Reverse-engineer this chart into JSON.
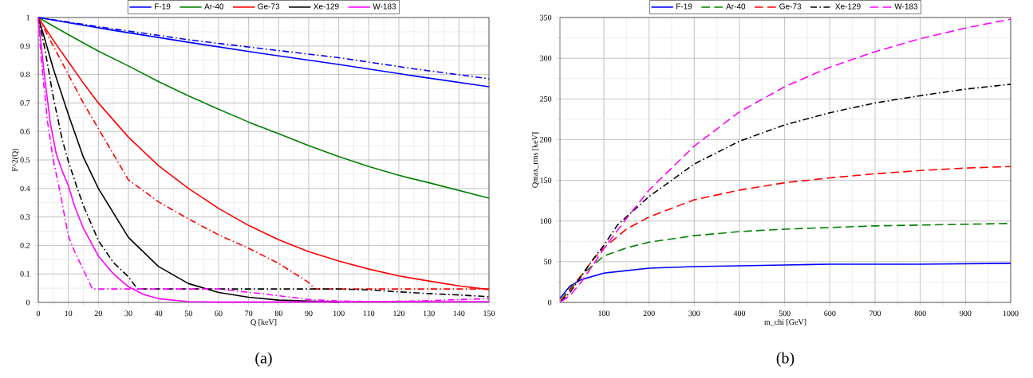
{
  "chart_data": [
    {
      "type": "line",
      "xlabel": "Q [keV]",
      "ylabel": "F^2(Q)",
      "xlim": [
        0,
        150
      ],
      "ylim": [
        0,
        1
      ],
      "xticks": [
        0,
        10,
        20,
        30,
        40,
        50,
        60,
        70,
        80,
        90,
        100,
        110,
        120,
        130,
        140,
        150
      ],
      "yticks": [
        0,
        0.1,
        0.2,
        0.3,
        0.4,
        0.5,
        0.6,
        0.7,
        0.8,
        0.9,
        1
      ],
      "grid": true,
      "legend": "top",
      "annotations": [
        "(a)"
      ],
      "series": [
        {
          "name": "F-19",
          "color": "#0000ff",
          "line_style": "solid",
          "x": [
            0,
            25,
            50,
            75,
            100,
            125,
            150
          ],
          "values": [
            1,
            0.955,
            0.913,
            0.873,
            0.835,
            0.795,
            0.757
          ]
        },
        {
          "name": "Ar-40",
          "color": "#008000",
          "line_style": "solid",
          "x": [
            0,
            10,
            20,
            30,
            40,
            50,
            60,
            70,
            80,
            90,
            100,
            110,
            120,
            130,
            140,
            150
          ],
          "values": [
            1,
            0.94,
            0.882,
            0.83,
            0.775,
            0.725,
            0.678,
            0.633,
            0.592,
            0.55,
            0.512,
            0.477,
            0.446,
            0.42,
            0.393,
            0.366
          ]
        },
        {
          "name": "Ge-73",
          "color": "#ff0000",
          "line_style": "solid",
          "x": [
            0,
            5,
            10,
            15,
            20,
            30,
            40,
            50,
            60,
            70,
            80,
            90,
            100,
            110,
            120,
            130,
            140,
            150
          ],
          "values": [
            1,
            0.92,
            0.845,
            0.77,
            0.7,
            0.58,
            0.48,
            0.4,
            0.33,
            0.27,
            0.22,
            0.178,
            0.145,
            0.117,
            0.093,
            0.075,
            0.058,
            0.045
          ]
        },
        {
          "name": "Xe-129",
          "color": "#000000",
          "line_style": "solid",
          "x": [
            0,
            2,
            5,
            10,
            15,
            20,
            30,
            40,
            50,
            60,
            70,
            80,
            100
          ],
          "values": [
            1,
            0.93,
            0.82,
            0.66,
            0.51,
            0.4,
            0.228,
            0.126,
            0.066,
            0.035,
            0.018,
            0.008,
            0.001
          ]
        },
        {
          "name": "W-183",
          "color": "#ff00ff",
          "line_style": "solid",
          "x": [
            0,
            2,
            4,
            6,
            8,
            10,
            12,
            15,
            20,
            25,
            30,
            35,
            40,
            50,
            60,
            150
          ],
          "values": [
            1,
            0.8,
            0.63,
            0.52,
            0.46,
            0.41,
            0.34,
            0.26,
            0.163,
            0.1,
            0.055,
            0.028,
            0.013,
            0.003,
            0.001,
            0.003
          ]
        },
        {
          "color": "#0000ff",
          "line_style": "dashdot",
          "x": [
            0,
            25,
            50,
            75,
            100,
            125,
            150
          ],
          "values": [
            1,
            0.96,
            0.922,
            0.89,
            0.859,
            0.82,
            0.785
          ]
        },
        {
          "color": "#ff0000",
          "line_style": "dashdot",
          "x": [
            0,
            5,
            10,
            15,
            20,
            25,
            30,
            40,
            50,
            60,
            70,
            80,
            90,
            92,
            150
          ],
          "values": [
            1,
            0.9,
            0.8,
            0.7,
            0.61,
            0.52,
            0.43,
            0.353,
            0.293,
            0.237,
            0.19,
            0.137,
            0.07,
            0.047,
            0.047
          ]
        },
        {
          "color": "#000000",
          "line_style": "dashdot",
          "x": [
            0,
            2,
            5,
            8,
            10,
            13,
            15,
            20,
            25,
            30,
            33,
            100,
            110,
            120,
            130,
            140,
            150
          ],
          "values": [
            1,
            0.9,
            0.72,
            0.57,
            0.495,
            0.4,
            0.34,
            0.217,
            0.14,
            0.09,
            0.047,
            0.047,
            0.044,
            0.037,
            0.031,
            0.026,
            0.02
          ]
        },
        {
          "color": "#ff00ff",
          "line_style": "dashdot",
          "x": [
            0,
            1,
            2,
            3,
            5,
            7,
            10,
            12,
            15,
            18,
            60,
            65,
            75,
            85,
            90,
            100,
            110,
            120,
            130,
            140,
            150
          ],
          "values": [
            1,
            0.85,
            0.75,
            0.64,
            0.5,
            0.4,
            0.234,
            0.18,
            0.115,
            0.047,
            0.047,
            0.041,
            0.03,
            0.017,
            0.01,
            0.005,
            0.003,
            0.004,
            0.006,
            0.01,
            0.013
          ]
        }
      ]
    },
    {
      "type": "line",
      "xlabel": "m_chi [GeV]",
      "ylabel": "Qmax_rms [keV]",
      "xlim": [
        3,
        1000
      ],
      "ylim": [
        0,
        350
      ],
      "xticks": [
        100,
        200,
        300,
        400,
        500,
        600,
        700,
        800,
        900,
        1000
      ],
      "yticks": [
        0,
        50,
        100,
        150,
        200,
        250,
        300,
        350
      ],
      "grid": true,
      "legend": "top",
      "annotations": [
        "(b)"
      ],
      "series": [
        {
          "name": "F-19",
          "color": "#0000ff",
          "line_style": "solid",
          "x": [
            3,
            25,
            50,
            100,
            200,
            300,
            400,
            500,
            600,
            700,
            800,
            1000
          ],
          "values": [
            5,
            20,
            28,
            36,
            42,
            44,
            45,
            46,
            47,
            47,
            47,
            48
          ]
        },
        {
          "name": "Ar-40",
          "color": "#008000",
          "line_style": "dashed",
          "x": [
            5,
            25,
            50,
            75,
            100,
            150,
            200,
            300,
            400,
            500,
            600,
            700,
            800,
            900,
            1000
          ],
          "values": [
            3,
            17,
            33,
            45,
            57,
            67,
            74,
            82,
            87,
            90,
            92,
            94,
            95,
            96,
            97
          ]
        },
        {
          "name": "Ge-73",
          "color": "#ff0000",
          "line_style": "dashed",
          "x": [
            5,
            25,
            50,
            75,
            100,
            150,
            200,
            300,
            400,
            500,
            600,
            700,
            800,
            900,
            1000
          ],
          "values": [
            2,
            15,
            33,
            52,
            67,
            90,
            105,
            126,
            138,
            147,
            153,
            158,
            162,
            165,
            167
          ]
        },
        {
          "name": "Xe-129",
          "color": "#000000",
          "line_style": "dashdot",
          "x": [
            5,
            25,
            50,
            75,
            100,
            130,
            200,
            300,
            400,
            500,
            600,
            700,
            800,
            900,
            1000
          ],
          "values": [
            1,
            12,
            32,
            52,
            70,
            95,
            130,
            170,
            198,
            218,
            233,
            245,
            254,
            262,
            268
          ]
        },
        {
          "name": "W-183",
          "color": "#ff00ff",
          "line_style": "dashed",
          "x": [
            5,
            25,
            50,
            75,
            100,
            150,
            200,
            300,
            400,
            500,
            600,
            700,
            800,
            900,
            1000
          ],
          "values": [
            1,
            8,
            25,
            45,
            66,
            103,
            138,
            192,
            234,
            265,
            289,
            308,
            324,
            337,
            348
          ]
        }
      ]
    }
  ]
}
